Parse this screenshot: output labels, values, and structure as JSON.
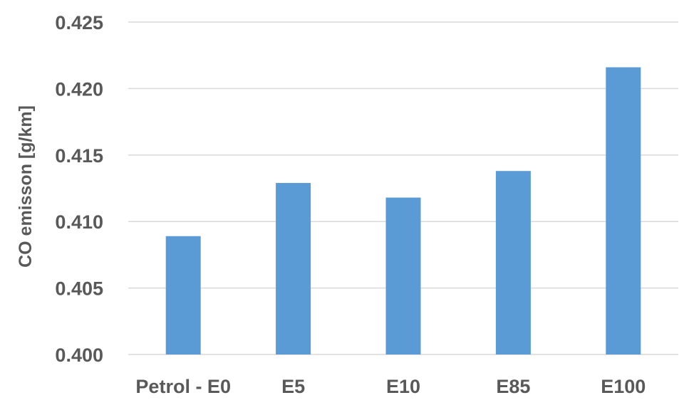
{
  "chart_data": {
    "type": "bar",
    "title": "",
    "xlabel": "",
    "ylabel": "CO emisson [g/km]",
    "categories": [
      "Petrol - E0",
      "E5",
      "E10",
      "E85",
      "E100"
    ],
    "values": [
      0.4089,
      0.4129,
      0.4118,
      0.4138,
      0.4216
    ],
    "ylim": [
      0.4,
      0.425
    ],
    "yticks": [
      "0.400",
      "0.405",
      "0.410",
      "0.415",
      "0.420",
      "0.425"
    ],
    "grid": true,
    "legend": "none",
    "bar_color": "#5b9bd5",
    "gridline_color": "#d9d9d9",
    "text_color": "#595959"
  }
}
